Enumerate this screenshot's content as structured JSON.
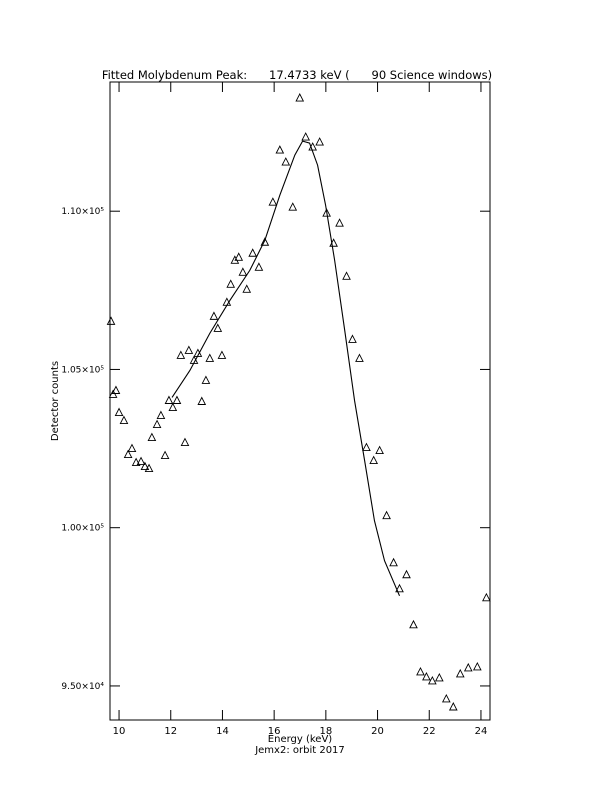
{
  "chart_data": {
    "type": "scatter",
    "title": "Fitted Molybdenum Peak:      17.4733 keV (      90 Science windows)",
    "x_label": "Energy (keV)",
    "subtitle": "Jemx2: orbit 2017",
    "y_label": "Detector counts",
    "color": "#000000",
    "xlim": [
      9.65,
      24.35
    ],
    "ylim": [
      93924,
      114082
    ],
    "xticks": [
      10,
      12,
      14,
      16,
      18,
      20,
      22,
      24
    ],
    "yticks": [
      {
        "value": 95000,
        "label": "9.50×10⁴"
      },
      {
        "value": 100000,
        "label": "1.00×10⁵"
      },
      {
        "value": 105000,
        "label": "1.05×10⁵"
      },
      {
        "value": 110000,
        "label": "1.10×10⁵"
      }
    ],
    "x": [
      9.69,
      9.77,
      9.88,
      10.0,
      10.19,
      10.35,
      10.5,
      10.66,
      10.85,
      11.0,
      11.16,
      11.27,
      11.47,
      11.62,
      11.78,
      11.93,
      12.08,
      12.24,
      12.39,
      12.55,
      12.7,
      12.9,
      13.05,
      13.2,
      13.36,
      13.51,
      13.67,
      13.82,
      13.98,
      14.17,
      14.32,
      14.48,
      14.63,
      14.79,
      14.94,
      15.17,
      15.41,
      15.64,
      15.95,
      16.22,
      16.45,
      16.72,
      16.99,
      17.22,
      17.49,
      17.76,
      18.03,
      18.3,
      18.53,
      18.8,
      19.03,
      19.3,
      19.57,
      19.85,
      20.08,
      20.35,
      20.62,
      20.85,
      21.12,
      21.39,
      21.66,
      21.89,
      22.12,
      22.39,
      22.66,
      22.93,
      23.2,
      23.51,
      23.86,
      24.21
    ],
    "values": [
      106519,
      104209,
      104335,
      103639,
      103386,
      102310,
      102500,
      102057,
      102089,
      101930,
      101867,
      102848,
      103259,
      103544,
      102278,
      104019,
      103797,
      104019,
      105443,
      102690,
      105601,
      105285,
      105506,
      103987,
      104652,
      105348,
      106677,
      106297,
      105443,
      107120,
      107690,
      108449,
      108544,
      108070,
      107532,
      108671,
      108228,
      109019,
      110285,
      111930,
      111551,
      110127,
      113576,
      112342,
      112025,
      112184,
      109937,
      108987,
      109620,
      107943,
      105949,
      105348,
      102532,
      102120,
      102437,
      100380,
      98892,
      98070,
      98513,
      96930,
      95443,
      95285,
      95158,
      95253,
      94589,
      94335,
      95380,
      95570,
      95601,
      97785
    ],
    "fit": {
      "x": [
        12.05,
        12.74,
        13.51,
        14.29,
        15.06,
        15.64,
        16.22,
        16.8,
        17.1,
        17.37,
        17.68,
        17.99,
        18.34,
        18.73,
        19.11,
        19.5,
        19.88,
        20.27,
        20.85
      ],
      "values": [
        104114,
        104968,
        106139,
        107184,
        108133,
        109082,
        110506,
        111772,
        112215,
        112152,
        111456,
        110190,
        108449,
        106234,
        104019,
        102120,
        100222,
        98956,
        97848
      ]
    }
  }
}
